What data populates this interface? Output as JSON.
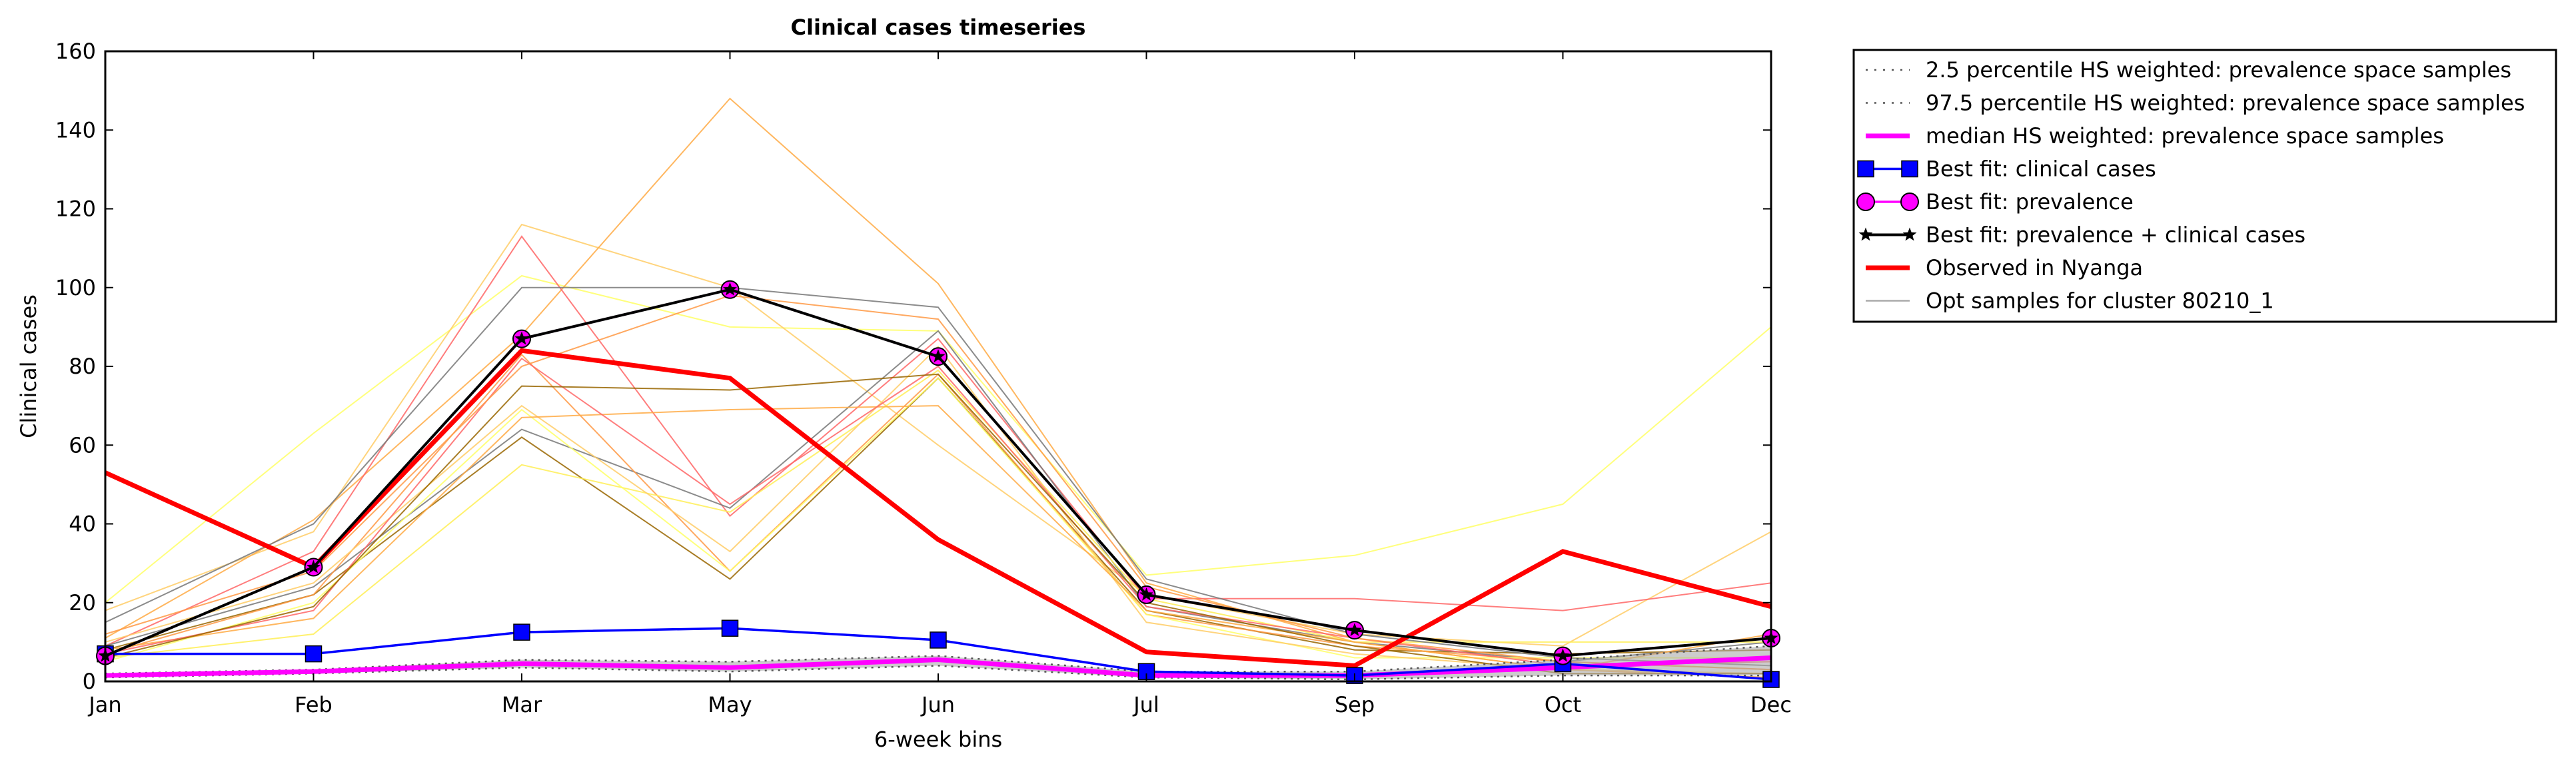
{
  "colors": {
    "observed": "#ff0000",
    "median": "#ff00ff",
    "percentile": "#555555",
    "fit_clinical": "#0000ff",
    "fit_prevalence": "#ff00ff",
    "fit_both": "#000000",
    "opt_samples": "#aaaaaa",
    "sample_palette": [
      "#ffff66",
      "#ffcc66",
      "#ffaa44",
      "#ff6666",
      "#996600",
      "#777777",
      "#ff9944",
      "#ffee55"
    ]
  },
  "chart_data": {
    "type": "line",
    "title": "Clinical cases timeseries",
    "xlabel": "6-week bins",
    "ylabel": "Clinical cases",
    "categories": [
      "Jan",
      "Feb",
      "Mar",
      "May",
      "Jun",
      "Jul",
      "Sep",
      "Oct",
      "Dec"
    ],
    "ylim": [
      0,
      160
    ],
    "yticks": [
      "0",
      "20",
      "40",
      "60",
      "80",
      "100",
      "120",
      "140",
      "160"
    ],
    "legend_position": "outside right, top",
    "legend": [
      {
        "label": "2.5 percentile HS weighted: prevalence space samples",
        "style": "dotted",
        "color": "#555555"
      },
      {
        "label": "97.5 percentile HS weighted: prevalence space samples",
        "style": "dotted",
        "color": "#555555"
      },
      {
        "label": "median HS weighted: prevalence space samples",
        "style": "thick",
        "color": "#ff00ff"
      },
      {
        "label": "Best fit: clinical cases",
        "style": "square",
        "color": "#0000ff"
      },
      {
        "label": "Best fit: prevalence",
        "style": "circle",
        "color": "#ff00ff"
      },
      {
        "label": "Best fit: prevalence + clinical cases",
        "style": "star",
        "color": "#000000"
      },
      {
        "label": "Observed in Nyanga",
        "style": "thick",
        "color": "#ff0000"
      },
      {
        "label": "Opt samples for cluster 80210_1",
        "style": "thin",
        "color": "#aaaaaa"
      }
    ],
    "series": [
      {
        "name": "2.5 percentile HS weighted: prevalence space samples",
        "values": [
          1,
          2,
          3.5,
          2.5,
          4,
          1,
          0.5,
          1.5,
          1.5
        ]
      },
      {
        "name": "97.5 percentile HS weighted: prevalence space samples",
        "values": [
          2,
          3,
          5.5,
          5,
          6.5,
          2.5,
          2.5,
          5.5,
          9
        ]
      },
      {
        "name": "median HS weighted: prevalence space samples",
        "values": [
          1.5,
          2.5,
          4.5,
          3.5,
          5.5,
          1.5,
          1.5,
          3.5,
          6
        ]
      },
      {
        "name": "Best fit: clinical cases",
        "values": [
          7,
          7,
          12.5,
          13.5,
          10.5,
          2.5,
          1.5,
          4.5,
          0.5
        ]
      },
      {
        "name": "Best fit: prevalence",
        "values": [
          6.5,
          29,
          87,
          99.5,
          82.5,
          22,
          13,
          6.5,
          11
        ]
      },
      {
        "name": "Best fit: prevalence + clinical cases",
        "values": [
          6.5,
          29,
          87,
          99.5,
          82.5,
          22,
          13,
          6.5,
          11
        ]
      },
      {
        "name": "Observed in Nyanga",
        "values": [
          53,
          29,
          84,
          77,
          36,
          7.5,
          4,
          33,
          19
        ]
      }
    ],
    "opt_sample_lines": [
      {
        "values": [
          20,
          63,
          103,
          90,
          89,
          27,
          32,
          45,
          90
        ]
      },
      {
        "values": [
          18,
          38,
          116,
          100,
          60,
          22,
          12,
          9,
          38
        ]
      },
      {
        "values": [
          11,
          41,
          88,
          148,
          101,
          25,
          10,
          3,
          1
        ]
      },
      {
        "values": [
          9,
          33,
          113,
          42,
          87,
          21,
          21,
          18,
          25
        ]
      },
      {
        "values": [
          8,
          22,
          62,
          26,
          77,
          18,
          8,
          7,
          8
        ]
      },
      {
        "values": [
          9,
          24,
          64,
          44,
          89,
          19,
          10,
          5,
          10
        ]
      },
      {
        "values": [
          7,
          22,
          83,
          28,
          78,
          17,
          9,
          5,
          3
        ]
      },
      {
        "values": [
          6,
          12,
          55,
          43,
          79,
          21,
          10,
          10,
          10
        ]
      },
      {
        "values": [
          5,
          20,
          69,
          28,
          77,
          17,
          6,
          6,
          6
        ]
      },
      {
        "values": [
          10,
          25,
          70,
          33,
          85,
          15,
          7,
          3,
          2
        ]
      },
      {
        "values": [
          8,
          16,
          67,
          69,
          70,
          18,
          10,
          3,
          12
        ]
      },
      {
        "values": [
          7,
          18,
          82,
          45,
          80,
          19,
          11,
          4,
          5
        ]
      },
      {
        "values": [
          6,
          19,
          75,
          74,
          78,
          20,
          9,
          2,
          2
        ]
      },
      {
        "values": [
          15,
          40,
          100,
          100,
          95,
          26,
          12,
          6,
          4
        ]
      },
      {
        "values": [
          12,
          28,
          80,
          98,
          92,
          24,
          11,
          5,
          3
        ]
      }
    ]
  }
}
